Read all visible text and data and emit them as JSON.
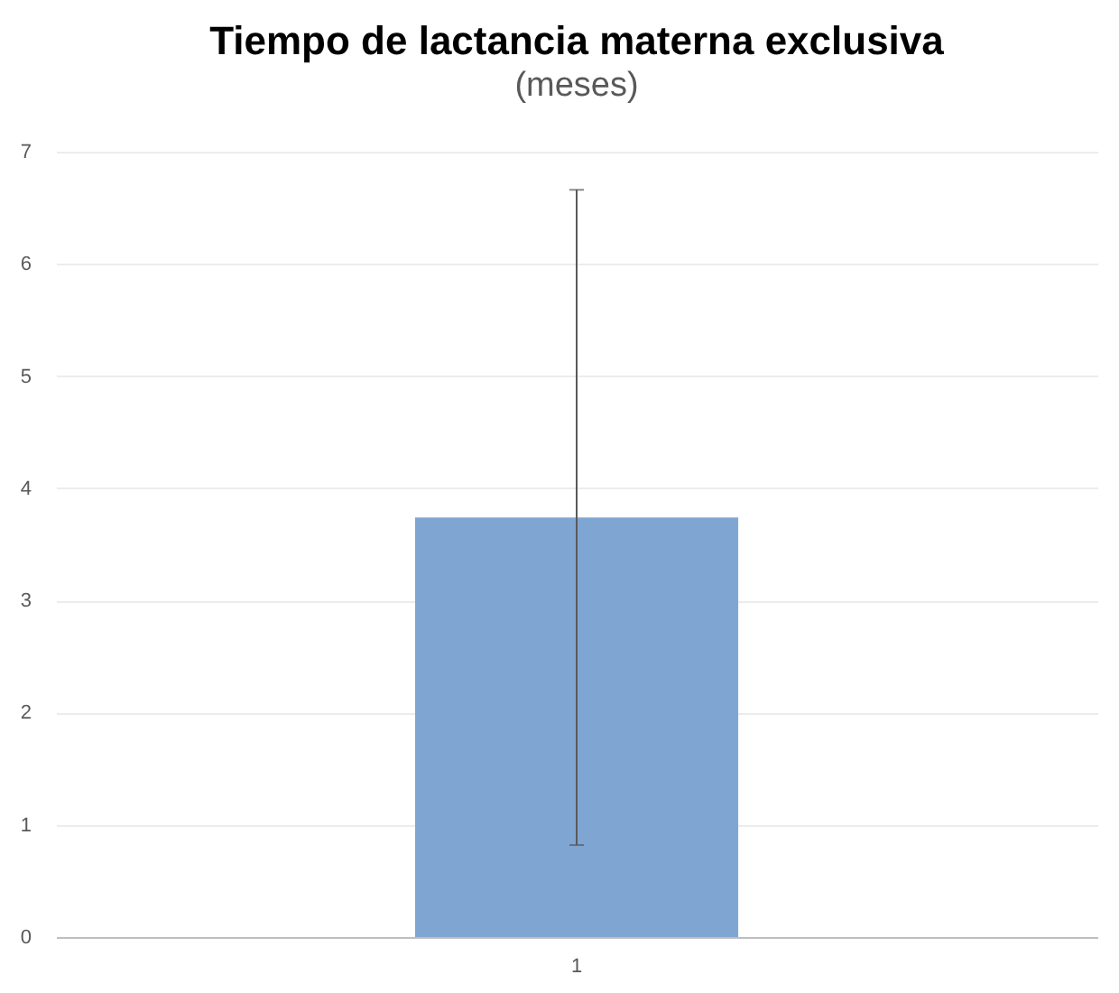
{
  "chart_data": {
    "type": "bar",
    "title": "Tiempo de lactancia materna exclusiva",
    "subtitle": "(meses)",
    "categories": [
      "1"
    ],
    "series": [
      {
        "color": "#7fa6d3",
        "values": [
          3.74
        ],
        "errors": [
          2.92
        ]
      }
    ],
    "ylim": [
      0,
      7
    ],
    "yticks": [
      0,
      1,
      2,
      3,
      4,
      5,
      6,
      7
    ],
    "grid": "y",
    "legend": false
  }
}
